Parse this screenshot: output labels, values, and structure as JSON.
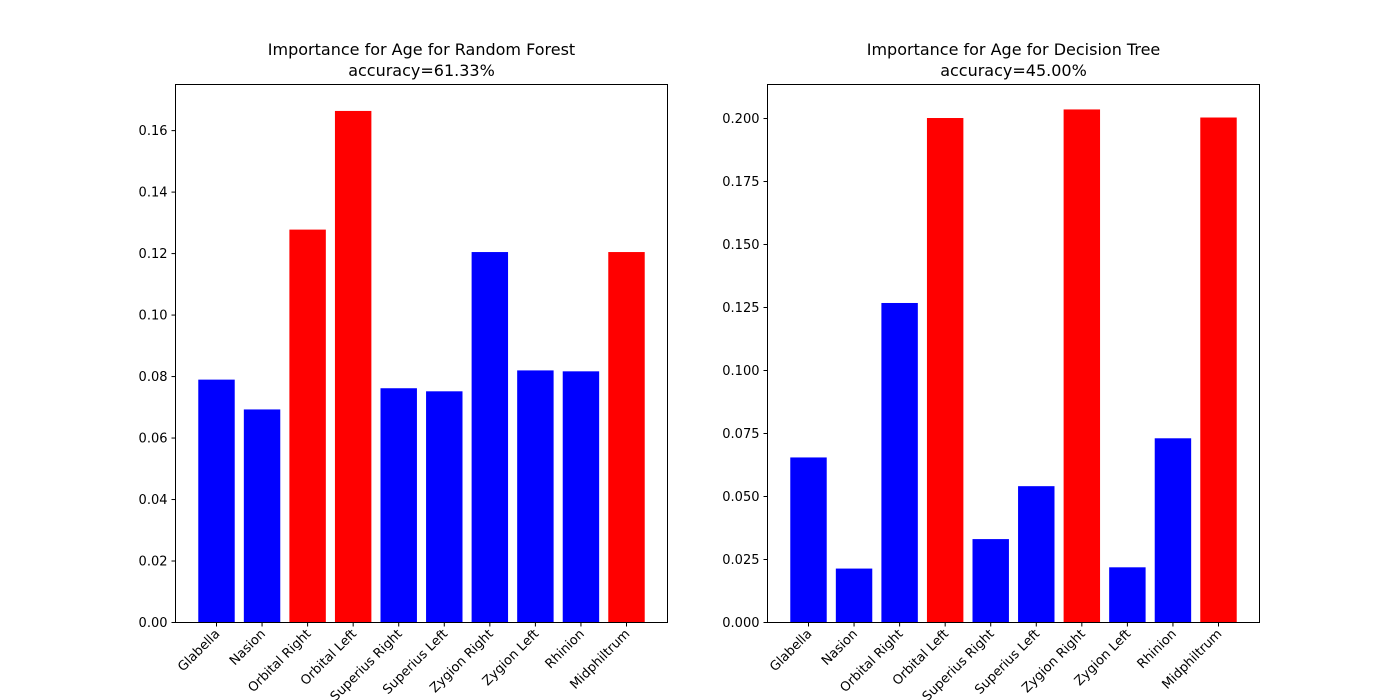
{
  "colors": {
    "low": "#0000ff",
    "high": "#ff0000",
    "axis": "#000000",
    "background": "#ffffff"
  },
  "chart_data": [
    {
      "type": "bar",
      "title": "Importance for Age for Random Forest",
      "subtitle": "accuracy=61.33%",
      "xlabel": "",
      "ylabel": "",
      "categories": [
        "Glabella",
        "Nasion",
        "Orbital Right",
        "Orbital Left",
        "Superius Right",
        "Superius Left",
        "Zygion Right",
        "Zygion Left",
        "Rhinion",
        "Midphiltrum"
      ],
      "values": [
        0.079,
        0.0693,
        0.1278,
        0.1664,
        0.0762,
        0.0752,
        0.1205,
        0.082,
        0.0817,
        0.1205
      ],
      "bar_colors": [
        "low",
        "low",
        "high",
        "high",
        "low",
        "low",
        "low",
        "low",
        "low",
        "high"
      ],
      "ylim": [
        0,
        0.175
      ],
      "yticks": [
        0.0,
        0.02,
        0.04,
        0.06,
        0.08,
        0.1,
        0.12,
        0.14,
        0.16
      ],
      "ytick_labels": [
        "0.00",
        "0.02",
        "0.04",
        "0.06",
        "0.08",
        "0.10",
        "0.12",
        "0.14",
        "0.16"
      ],
      "grid": false,
      "legend": null
    },
    {
      "type": "bar",
      "title": "Importance for Age for Decision Tree",
      "subtitle": "accuracy=45.00%",
      "xlabel": "",
      "ylabel": "",
      "categories": [
        "Glabella",
        "Nasion",
        "Orbital Right",
        "Orbital Left",
        "Superius Right",
        "Superius Left",
        "Zygion Right",
        "Zygion Left",
        "Rhinion",
        "Midphiltrum"
      ],
      "values": [
        0.0655,
        0.0214,
        0.1268,
        0.2002,
        0.0331,
        0.0541,
        0.2036,
        0.0219,
        0.0731,
        0.2004
      ],
      "bar_colors": [
        "low",
        "low",
        "low",
        "high",
        "low",
        "low",
        "high",
        "low",
        "low",
        "high"
      ],
      "ylim": [
        0,
        0.2135
      ],
      "yticks": [
        0.0,
        0.025,
        0.05,
        0.075,
        0.1,
        0.125,
        0.15,
        0.175,
        0.2
      ],
      "ytick_labels": [
        "0.000",
        "0.025",
        "0.050",
        "0.075",
        "0.100",
        "0.125",
        "0.150",
        "0.175",
        "0.200"
      ],
      "grid": false,
      "legend": null
    }
  ]
}
